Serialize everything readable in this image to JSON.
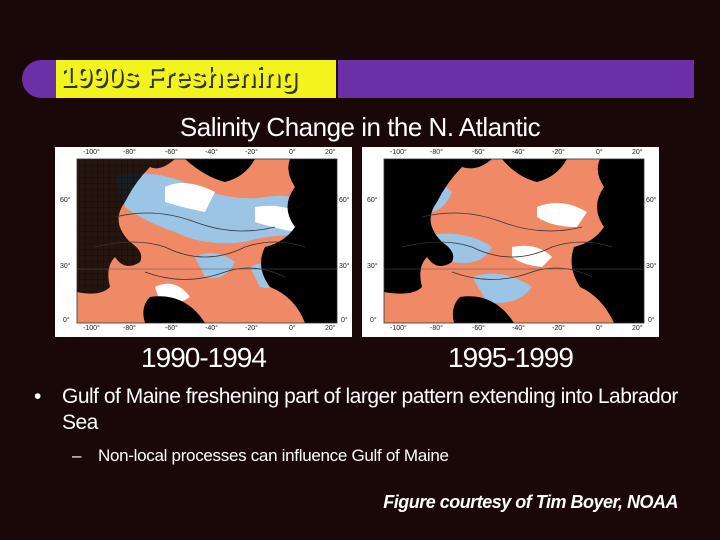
{
  "header": {
    "title": "1990s Freshening",
    "subtitle": "Salinity Change in the N. Atlantic",
    "accent_yellow": "#f3f31e",
    "accent_purple": "#6b2fa6"
  },
  "maps": [
    {
      "period": "1990-1994",
      "top_ticks": [
        "-100°",
        "-80°",
        "-60°",
        "-40°",
        "-20°",
        "0°",
        "20°"
      ],
      "bottom_ticks": [
        "-100°",
        "-80°",
        "-60°",
        "-40°",
        "-20°",
        "0°",
        "20°"
      ],
      "lat_ticks": [
        "60°",
        "30°",
        "0°"
      ]
    },
    {
      "period": "1995-1999",
      "top_ticks": [
        "-100°",
        "-80°",
        "-60°",
        "-40°",
        "-20°",
        "0°",
        "20°"
      ],
      "bottom_ticks": [
        "-100°",
        "-80°",
        "-60°",
        "-40°",
        "-20°",
        "0°",
        "20°"
      ],
      "lat_ticks": [
        "60°",
        "30°",
        "0°"
      ]
    }
  ],
  "bullets": [
    {
      "text": "Gulf of Maine freshening part of larger pattern extending into Labrador Sea",
      "sub": "Non-local processes can influence Gulf of Maine"
    }
  ],
  "credit": "Figure courtesy of Tim Boyer, NOAA",
  "colors": {
    "salty": "#f08a66",
    "fresh": "#9cc4e4",
    "land": "#000000"
  }
}
